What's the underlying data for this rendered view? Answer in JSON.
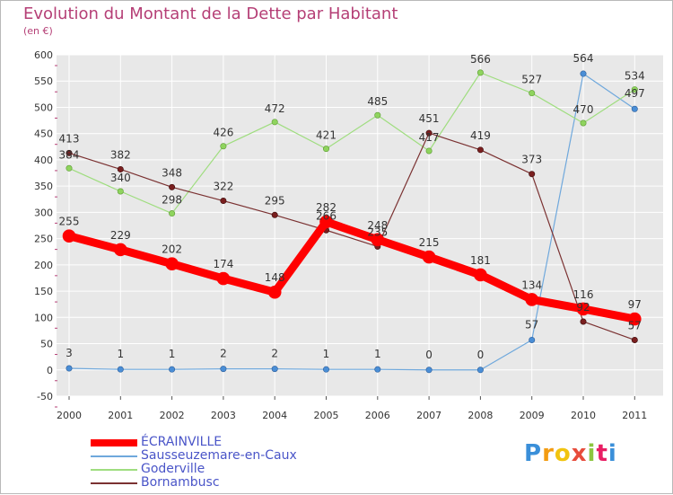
{
  "chart_data": {
    "type": "line",
    "title": "Evolution du Montant de la Dette par Habitant",
    "subtitle": "(en €)",
    "x": [
      "2000",
      "2001",
      "2002",
      "2003",
      "2004",
      "2005",
      "2006",
      "2007",
      "2008",
      "2009",
      "2010",
      "2011"
    ],
    "ylim": [
      -50,
      600
    ],
    "yticks": [
      -50,
      0,
      50,
      100,
      150,
      200,
      250,
      300,
      350,
      400,
      450,
      500,
      550,
      600
    ],
    "grid": true,
    "legend_position": "bottom-left",
    "series": [
      {
        "name": "ÉCRAINVILLE",
        "color": "#ff0000",
        "values": [
          255,
          229,
          202,
          174,
          148,
          282,
          248,
          215,
          181,
          134,
          116,
          97
        ]
      },
      {
        "name": "Sausseuzemare-en-Caux",
        "color": "#6fa8dc",
        "values": [
          3,
          1,
          1,
          2,
          2,
          1,
          1,
          0,
          0,
          57,
          564,
          497
        ]
      },
      {
        "name": "Goderville",
        "color": "#9fdd7f",
        "values": [
          384,
          340,
          298,
          426,
          472,
          421,
          485,
          417,
          566,
          527,
          470,
          534
        ]
      },
      {
        "name": "Bornambusc",
        "color": "#7b3232",
        "values": [
          413,
          382,
          348,
          322,
          295,
          266,
          235,
          451,
          419,
          373,
          92,
          57
        ]
      }
    ]
  },
  "colors": {
    "title": "#b53f76",
    "plot_bg": "#e8e8e8",
    "grid": "#ffffff",
    "legend_text": "#4a55c8"
  },
  "logo": {
    "letters": [
      "P",
      "r",
      "o",
      "x",
      "i",
      "t",
      "i"
    ],
    "colors": [
      "#3a8fd9",
      "#f39c12",
      "#f1c40f",
      "#e74c3c",
      "#8cc63f",
      "#e91e63",
      "#3a8fd9"
    ]
  }
}
